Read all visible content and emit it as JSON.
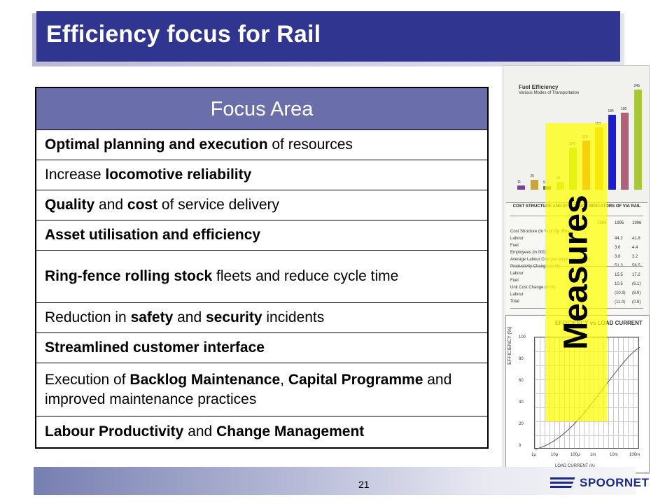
{
  "slide": {
    "title": "Efficiency focus for Rail",
    "page_number": "21",
    "logo_text": "SPOORNET",
    "overlay_label": "Measures"
  },
  "table": {
    "header": "Focus Area",
    "rows": [
      [
        {
          "t": "Optimal planning and execution",
          "b": true
        },
        {
          "t": " of resources",
          "b": false
        }
      ],
      [
        {
          "t": "Increase ",
          "b": false
        },
        {
          "t": "locomotive reliability",
          "b": true
        }
      ],
      [
        {
          "t": "Quality",
          "b": true
        },
        {
          "t": " and ",
          "b": false
        },
        {
          "t": "cost",
          "b": true
        },
        {
          "t": " of service delivery",
          "b": false
        }
      ],
      [
        {
          "t": "Asset utilisation and efficiency",
          "b": true
        }
      ],
      [
        {
          "t": "Ring-fence rolling stock",
          "b": true
        },
        {
          "t": " fleets and reduce cycle time",
          "b": false
        }
      ],
      [
        {
          "t": "Reduction in ",
          "b": false
        },
        {
          "t": "safety",
          "b": true
        },
        {
          "t": " and ",
          "b": false
        },
        {
          "t": "security",
          "b": true
        },
        {
          "t": " incidents",
          "b": false
        }
      ],
      [
        {
          "t": "Streamlined customer interface",
          "b": true
        }
      ],
      [
        {
          "t": "Execution of ",
          "b": false
        },
        {
          "t": "Backlog Maintenance",
          "b": true
        },
        {
          "t": ", ",
          "b": false
        },
        {
          "t": "Capital Programme",
          "b": true
        },
        {
          "t": " and improved maintenance practices",
          "b": false
        }
      ],
      [
        {
          "t": "Labour Productivity",
          "b": true
        },
        {
          "t": " and ",
          "b": false
        },
        {
          "t": "Change Management",
          "b": true
        }
      ]
    ]
  },
  "images": {
    "fuel_chart": {
      "title": "Fuel Efficiency",
      "subtitle": "Various Modes of Transportation",
      "bars": [
        {
          "value": 11,
          "color": "#7b3fa0"
        },
        {
          "value": 25,
          "color": "#c9a43d"
        },
        {
          "value": 9,
          "color": "#6e7d2f"
        },
        {
          "value": 19,
          "color": "#b5d84a"
        },
        {
          "value": 104,
          "color": "#9fd83a"
        },
        {
          "value": 120,
          "color": "#e05a2a"
        },
        {
          "value": 153,
          "color": "#e3b52a"
        },
        {
          "value": 184,
          "color": "#1c1ccf"
        },
        {
          "value": 190,
          "color": "#b0607a"
        },
        {
          "value": 246,
          "color": "#a8c83a"
        }
      ]
    },
    "via_table": {
      "title": "COST STRUCTURE AND EFFICIENCY INDICATORS OF VIA RAIL",
      "years": [
        "1994",
        "1995",
        "1996"
      ],
      "rows": [
        "Cost Structure (In % of Op. Rev.)",
        "Labour",
        "Fuel",
        "Employees (in 000)",
        "Average Labour Cost per employee ($000)",
        "Productivity Change (in %)",
        "Labour",
        "Fuel",
        "Unit Cost Change (in %)",
        "Labour",
        "Total"
      ],
      "values": [
        "44.2",
        "41.8",
        "3.6",
        "4.4",
        "3.8",
        "3.2",
        "51.3",
        "56.5",
        "15.5",
        "17.2",
        "10.5",
        "(6.1)",
        "(10.9)",
        "(8.9)",
        "(11.0)",
        "(0.8)"
      ]
    },
    "eff_chart": {
      "title": "EFFICIENCY vs LOAD CURRENT",
      "ylabel": "EFFICIENCY (%)",
      "xlabel": "LOAD CURRENT (A)",
      "yticks": [
        "100",
        "80",
        "60",
        "40",
        "20",
        "0"
      ],
      "xticks": [
        "1μ",
        "10μ",
        "100μ",
        "1m",
        "10m",
        "100m"
      ]
    }
  }
}
